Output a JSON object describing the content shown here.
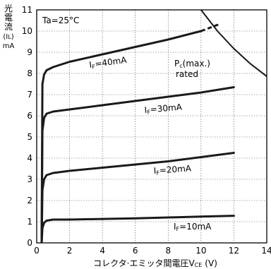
{
  "chart_data": {
    "type": "line",
    "title": "",
    "condition": "Ta=25°C",
    "xlabel": "コレクタ·エミッタ間電圧V",
    "xlabel_sub": "CE",
    "xlabel_unit": "(V)",
    "ylabel_chars": [
      "光",
      "電",
      "流"
    ],
    "ylabel_sym": "(I",
    "ylabel_sub": "L",
    "ylabel_sym_close": ")",
    "ylabel_unit": "mA",
    "xlim": [
      0,
      14
    ],
    "ylim": [
      0,
      11
    ],
    "xticks": [
      "0",
      "2",
      "4",
      "6",
      "8",
      "10",
      "12",
      "14"
    ],
    "yticks": [
      "0",
      "1",
      "2",
      "3",
      "4",
      "5",
      "6",
      "7",
      "8",
      "9",
      "10",
      "11"
    ],
    "grid": true,
    "series": [
      {
        "name": "IF=10mA",
        "label_prefix": "I",
        "label_sub": "F",
        "label_value": "=10mA",
        "x": [
          0.3,
          0.35,
          0.45,
          0.6,
          1.0,
          2,
          4,
          6,
          8,
          10,
          12
        ],
        "y": [
          0.0,
          0.7,
          0.95,
          1.05,
          1.1,
          1.1,
          1.13,
          1.16,
          1.2,
          1.24,
          1.28
        ]
      },
      {
        "name": "IF=20mA",
        "label_prefix": "I",
        "label_sub": "F",
        "label_value": "=20mA",
        "x": [
          0.3,
          0.35,
          0.45,
          0.6,
          1.0,
          2,
          4,
          6,
          8,
          10,
          12
        ],
        "y": [
          0.0,
          2.5,
          3.0,
          3.2,
          3.3,
          3.4,
          3.55,
          3.7,
          3.85,
          4.05,
          4.25
        ]
      },
      {
        "name": "IF=30mA",
        "label_prefix": "I",
        "label_sub": "F",
        "label_value": "=30mA",
        "x": [
          0.3,
          0.35,
          0.45,
          0.6,
          1.0,
          2,
          4,
          6,
          8,
          10,
          12
        ],
        "y": [
          0.0,
          5.3,
          5.9,
          6.1,
          6.2,
          6.3,
          6.5,
          6.7,
          6.9,
          7.1,
          7.35
        ]
      },
      {
        "name": "IF=40mA",
        "label_prefix": "I",
        "label_sub": "F",
        "label_value": "=40mA",
        "x": [
          0.3,
          0.35,
          0.45,
          0.6,
          1.0,
          2,
          4,
          6,
          8,
          10
        ],
        "y": [
          0.0,
          7.5,
          7.95,
          8.15,
          8.3,
          8.55,
          8.9,
          9.25,
          9.6,
          10.0
        ]
      },
      {
        "name": "IF=40mA extension",
        "style": "dashed",
        "x": [
          10,
          11.2
        ],
        "y": [
          10.0,
          10.35
        ]
      }
    ],
    "boundary": {
      "name": "Pc(max.) rated",
      "label_prefix": "P",
      "label_sub": "c",
      "label_rest": "(max.)",
      "label_line2": "rated",
      "x": [
        9.3,
        10,
        11,
        12,
        13,
        14
      ],
      "y": [
        11.83,
        11.0,
        10.0,
        9.17,
        8.46,
        7.86
      ]
    }
  }
}
